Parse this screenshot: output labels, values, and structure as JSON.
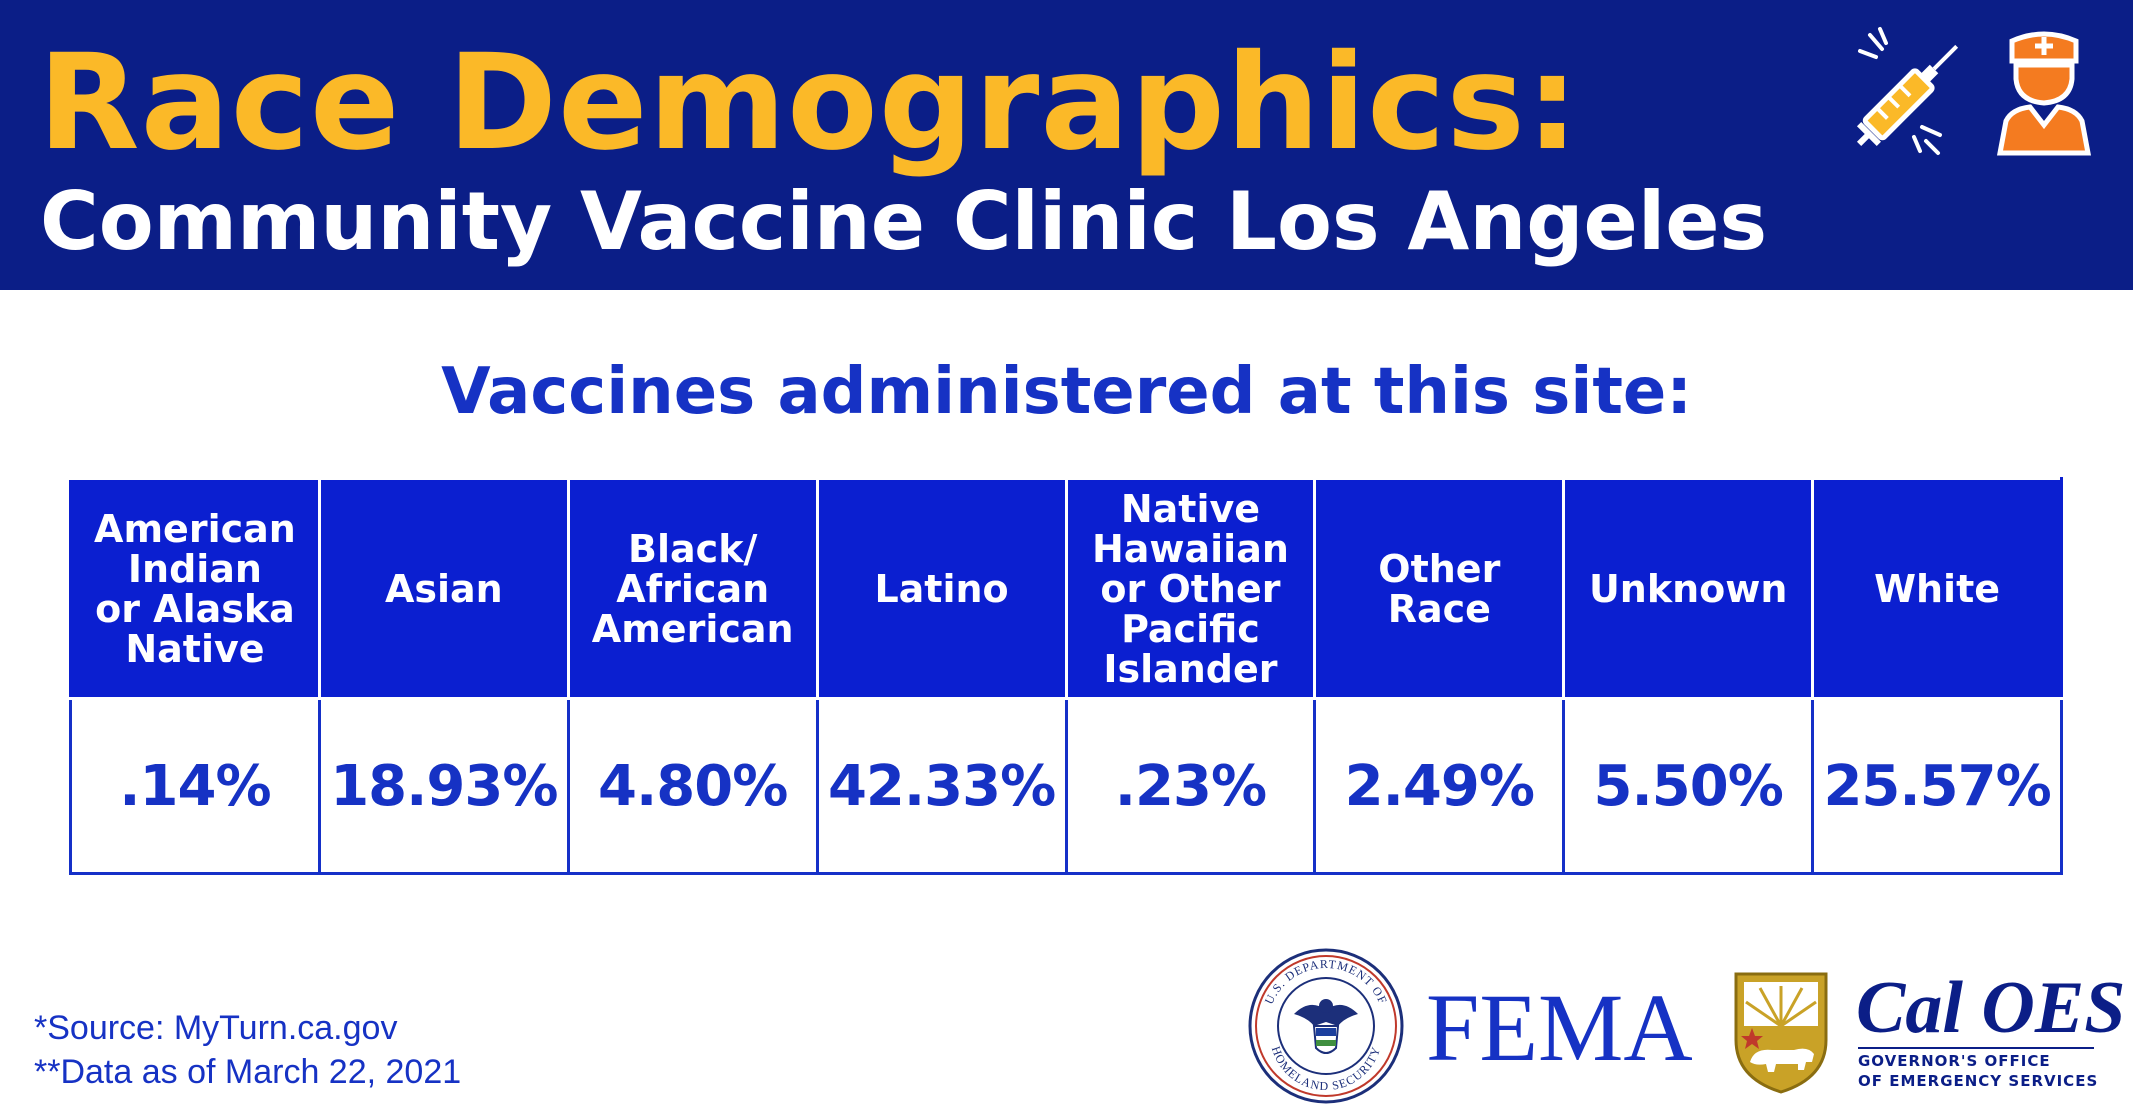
{
  "header": {
    "title": "Race Demographics:",
    "subtitle": "Community Vaccine Clinic Los Angeles"
  },
  "section_heading": "Vaccines administered at this site:",
  "table": {
    "columns": [
      {
        "label_lines": [
          "American",
          "Indian",
          "or Alaska",
          "Native"
        ],
        "value": ".14%"
      },
      {
        "label_lines": [
          "Asian"
        ],
        "value": "18.93%"
      },
      {
        "label_lines": [
          "Black/",
          "African",
          "American"
        ],
        "value": "4.80%"
      },
      {
        "label_lines": [
          "Latino"
        ],
        "value": "42.33%"
      },
      {
        "label_lines": [
          "Native",
          "Hawaiian",
          "or Other",
          "Pacific",
          "Islander"
        ],
        "value": ".23%"
      },
      {
        "label_lines": [
          "Other Race"
        ],
        "value": "2.49%"
      },
      {
        "label_lines": [
          "Unknown"
        ],
        "value": "5.50%"
      },
      {
        "label_lines": [
          "White"
        ],
        "value": "25.57%"
      }
    ]
  },
  "footnotes": {
    "source": "*Source: MyTurn.ca.gov",
    "data_date": "**Data as of March 22, 2021"
  },
  "logos": {
    "dhs_seal_top": "U.S. DEPARTMENT OF",
    "dhs_seal_bottom": "HOMELAND SECURITY",
    "fema": "FEMA",
    "caloes_name": "Cal OES",
    "caloes_line1": "GOVERNOR'S OFFICE",
    "caloes_line2": "OF EMERGENCY SERVICES"
  },
  "icons": [
    "syringe-icon",
    "nurse-icon"
  ],
  "colors": {
    "header_bg": "#0b1e87",
    "title_yellow": "#fbb928",
    "table_header_bg": "#0b1fd0",
    "text_blue": "#1632c4",
    "icon_orange": "#f47b20"
  }
}
